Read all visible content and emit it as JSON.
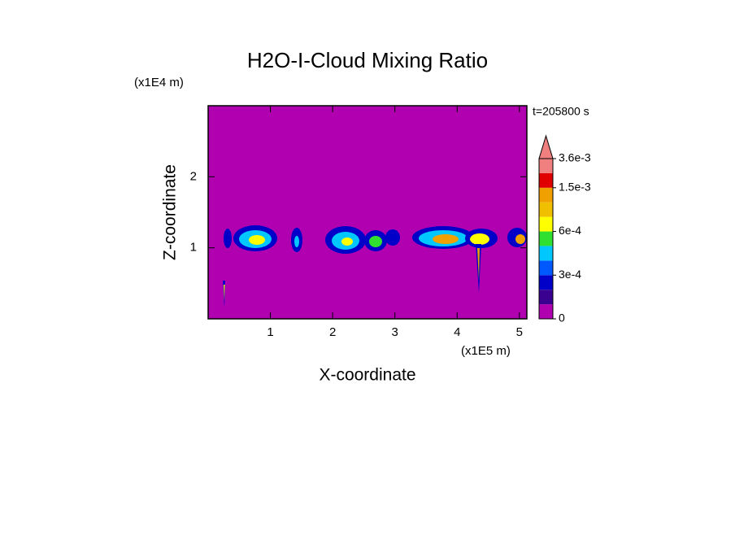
{
  "chart_data": {
    "type": "contour",
    "title": "H2O-I-Cloud Mixing Ratio",
    "x_label": "X-coordinate",
    "y_label": "Z-coordinate",
    "x_unit": "(x1E5 m)",
    "y_unit": "(x1E4 m)",
    "annotation": "t=205800 s",
    "xlim": [
      0,
      5.12
    ],
    "ylim": [
      0,
      3
    ],
    "xticks": [
      1,
      2,
      3,
      4,
      5
    ],
    "yticks": [
      1,
      2
    ],
    "background_color": "#b000b0",
    "colorbar": {
      "levels": [
        0,
        0.0001,
        0.0002,
        0.0003,
        0.0004,
        0.0005,
        0.0006,
        0.0008,
        0.001,
        0.0015,
        0.0025,
        0.0036
      ],
      "colors": [
        "#b000b0",
        "#3a0090",
        "#0000c8",
        "#0058ff",
        "#00c8ff",
        "#30e030",
        "#ffff00",
        "#f0c000",
        "#f0a000",
        "#e00000",
        "#f08080"
      ],
      "ticks": [
        {
          "value": 0,
          "label": "0"
        },
        {
          "value": 0.0003,
          "label": "3e-4"
        },
        {
          "value": 0.0006,
          "label": "6e-4"
        },
        {
          "value": 0.0015,
          "label": "1.5e-3"
        },
        {
          "value": 0.0036,
          "label": "3.6e-3"
        }
      ]
    }
  }
}
